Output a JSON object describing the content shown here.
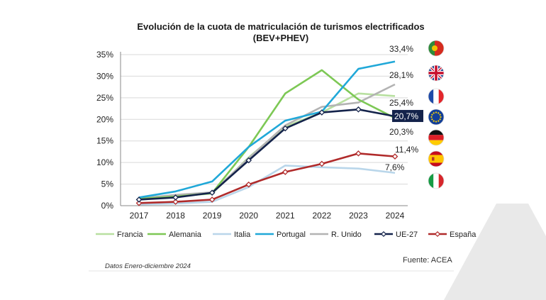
{
  "chart_data": {
    "type": "line",
    "title": "Evolución de la cuota de matriculación de turismos electrificados",
    "subtitle": "(BEV+PHEV)",
    "x": [
      "2017",
      "2018",
      "2019",
      "2020",
      "2021",
      "2022",
      "2023",
      "2024"
    ],
    "ylim": [
      0,
      35
    ],
    "yticks": [
      "0%",
      "5%",
      "10%",
      "15%",
      "20%",
      "25%",
      "30%",
      "35%"
    ],
    "grid": true,
    "legend_position": "bottom",
    "series": [
      {
        "name": "Francia",
        "color": "#b8e0a0",
        "values": [
          1.5,
          2.2,
          2.8,
          11.2,
          18.3,
          21.6,
          26.0,
          25.4
        ],
        "end_label": "25,4%",
        "flag": "france-flag-icon"
      },
      {
        "name": "Alemania",
        "color": "#7dc855",
        "values": [
          1.6,
          2.1,
          2.9,
          13.6,
          26.0,
          31.4,
          24.6,
          20.3
        ],
        "end_label": "20,3%",
        "flag": "germany-flag-icon"
      },
      {
        "name": "Italia",
        "color": "#b9d6ea",
        "values": [
          0.3,
          0.5,
          0.9,
          4.3,
          9.3,
          8.9,
          8.6,
          7.6
        ],
        "end_label": "7,6%",
        "flag": "italy-flag-icon"
      },
      {
        "name": "Portugal",
        "color": "#20a8d8",
        "values": [
          1.9,
          3.3,
          5.6,
          13.6,
          19.7,
          21.8,
          31.7,
          33.4
        ],
        "end_label": "33,4%",
        "flag": "portugal-flag-icon"
      },
      {
        "name": "R. Unido",
        "color": "#b3b3b3",
        "values": [
          1.7,
          2.5,
          3.1,
          11.0,
          18.6,
          22.9,
          23.9,
          28.1
        ],
        "end_label": "28,1%",
        "flag": "uk-flag-icon"
      },
      {
        "name": "UE-27",
        "color": "#14234b",
        "values": [
          1.4,
          1.9,
          3.0,
          10.5,
          17.9,
          21.6,
          22.3,
          20.7
        ],
        "end_label": "20,7%",
        "flag": "eu-flag-icon",
        "marker": "diamond",
        "highlight": true
      },
      {
        "name": "España",
        "color": "#b02a2a",
        "values": [
          0.6,
          0.9,
          1.4,
          4.9,
          7.8,
          9.7,
          12.1,
          11.4
        ],
        "end_label": "11,4%",
        "flag": "spain-flag-icon",
        "marker": "diamond"
      }
    ],
    "source": "Fuente: ACEA",
    "note": "Datos Enero-diciembre 2024"
  }
}
